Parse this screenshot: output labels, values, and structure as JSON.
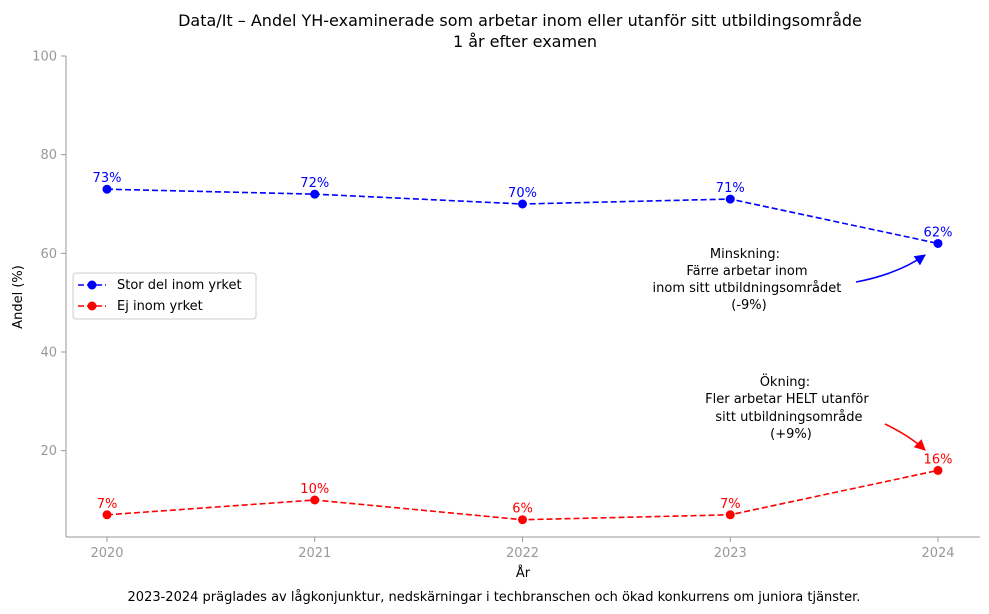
{
  "chart_data": {
    "type": "line",
    "title": "Data/It – Andel YH-examinerade som arbetar inom eller utanför sitt utbildingsområde",
    "subtitle": "1 år efter examen",
    "xlabel": "År",
    "ylabel": "Andel (%)",
    "ylim": [
      2.5,
      100
    ],
    "yticks": [
      "20",
      "40",
      "60",
      "80",
      "100"
    ],
    "x": [
      "2020",
      "2021",
      "2022",
      "2023",
      "2024"
    ],
    "legend_position": "center-left",
    "series": [
      {
        "name": "Stor del inom yrket",
        "color": "#0000ff",
        "style": "dashed",
        "marker": "circle",
        "values": [
          73,
          72,
          70,
          71,
          62
        ],
        "labels": [
          "73%",
          "72%",
          "70%",
          "71%",
          "62%"
        ]
      },
      {
        "name": "Ej inom yrket",
        "color": "#ff0000",
        "style": "dashed",
        "marker": "circle",
        "values": [
          7,
          10,
          6,
          7,
          16
        ],
        "labels": [
          "7%",
          "10%",
          "6%",
          "7%",
          "16%"
        ]
      }
    ],
    "annotations": [
      {
        "lines": [
          "Minskning:",
          "Färre arbetar inom",
          "inom sitt utbildningsområdet",
          "(-9%)"
        ],
        "arrow_to": {
          "x": "2024",
          "y": 62
        },
        "color": "#0000ff"
      },
      {
        "lines": [
          "Ökning:",
          "Fler arbetar HELT utanför",
          "sitt utbildningsområde",
          "(+9%)"
        ],
        "arrow_to": {
          "x": "2024",
          "y": 16
        },
        "color": "#ff0000"
      }
    ],
    "footnote": "2023-2024 präglades av lågkonjunktur, nedskärningar i techbranschen och ökad konkurrens om juniora tjänster."
  }
}
